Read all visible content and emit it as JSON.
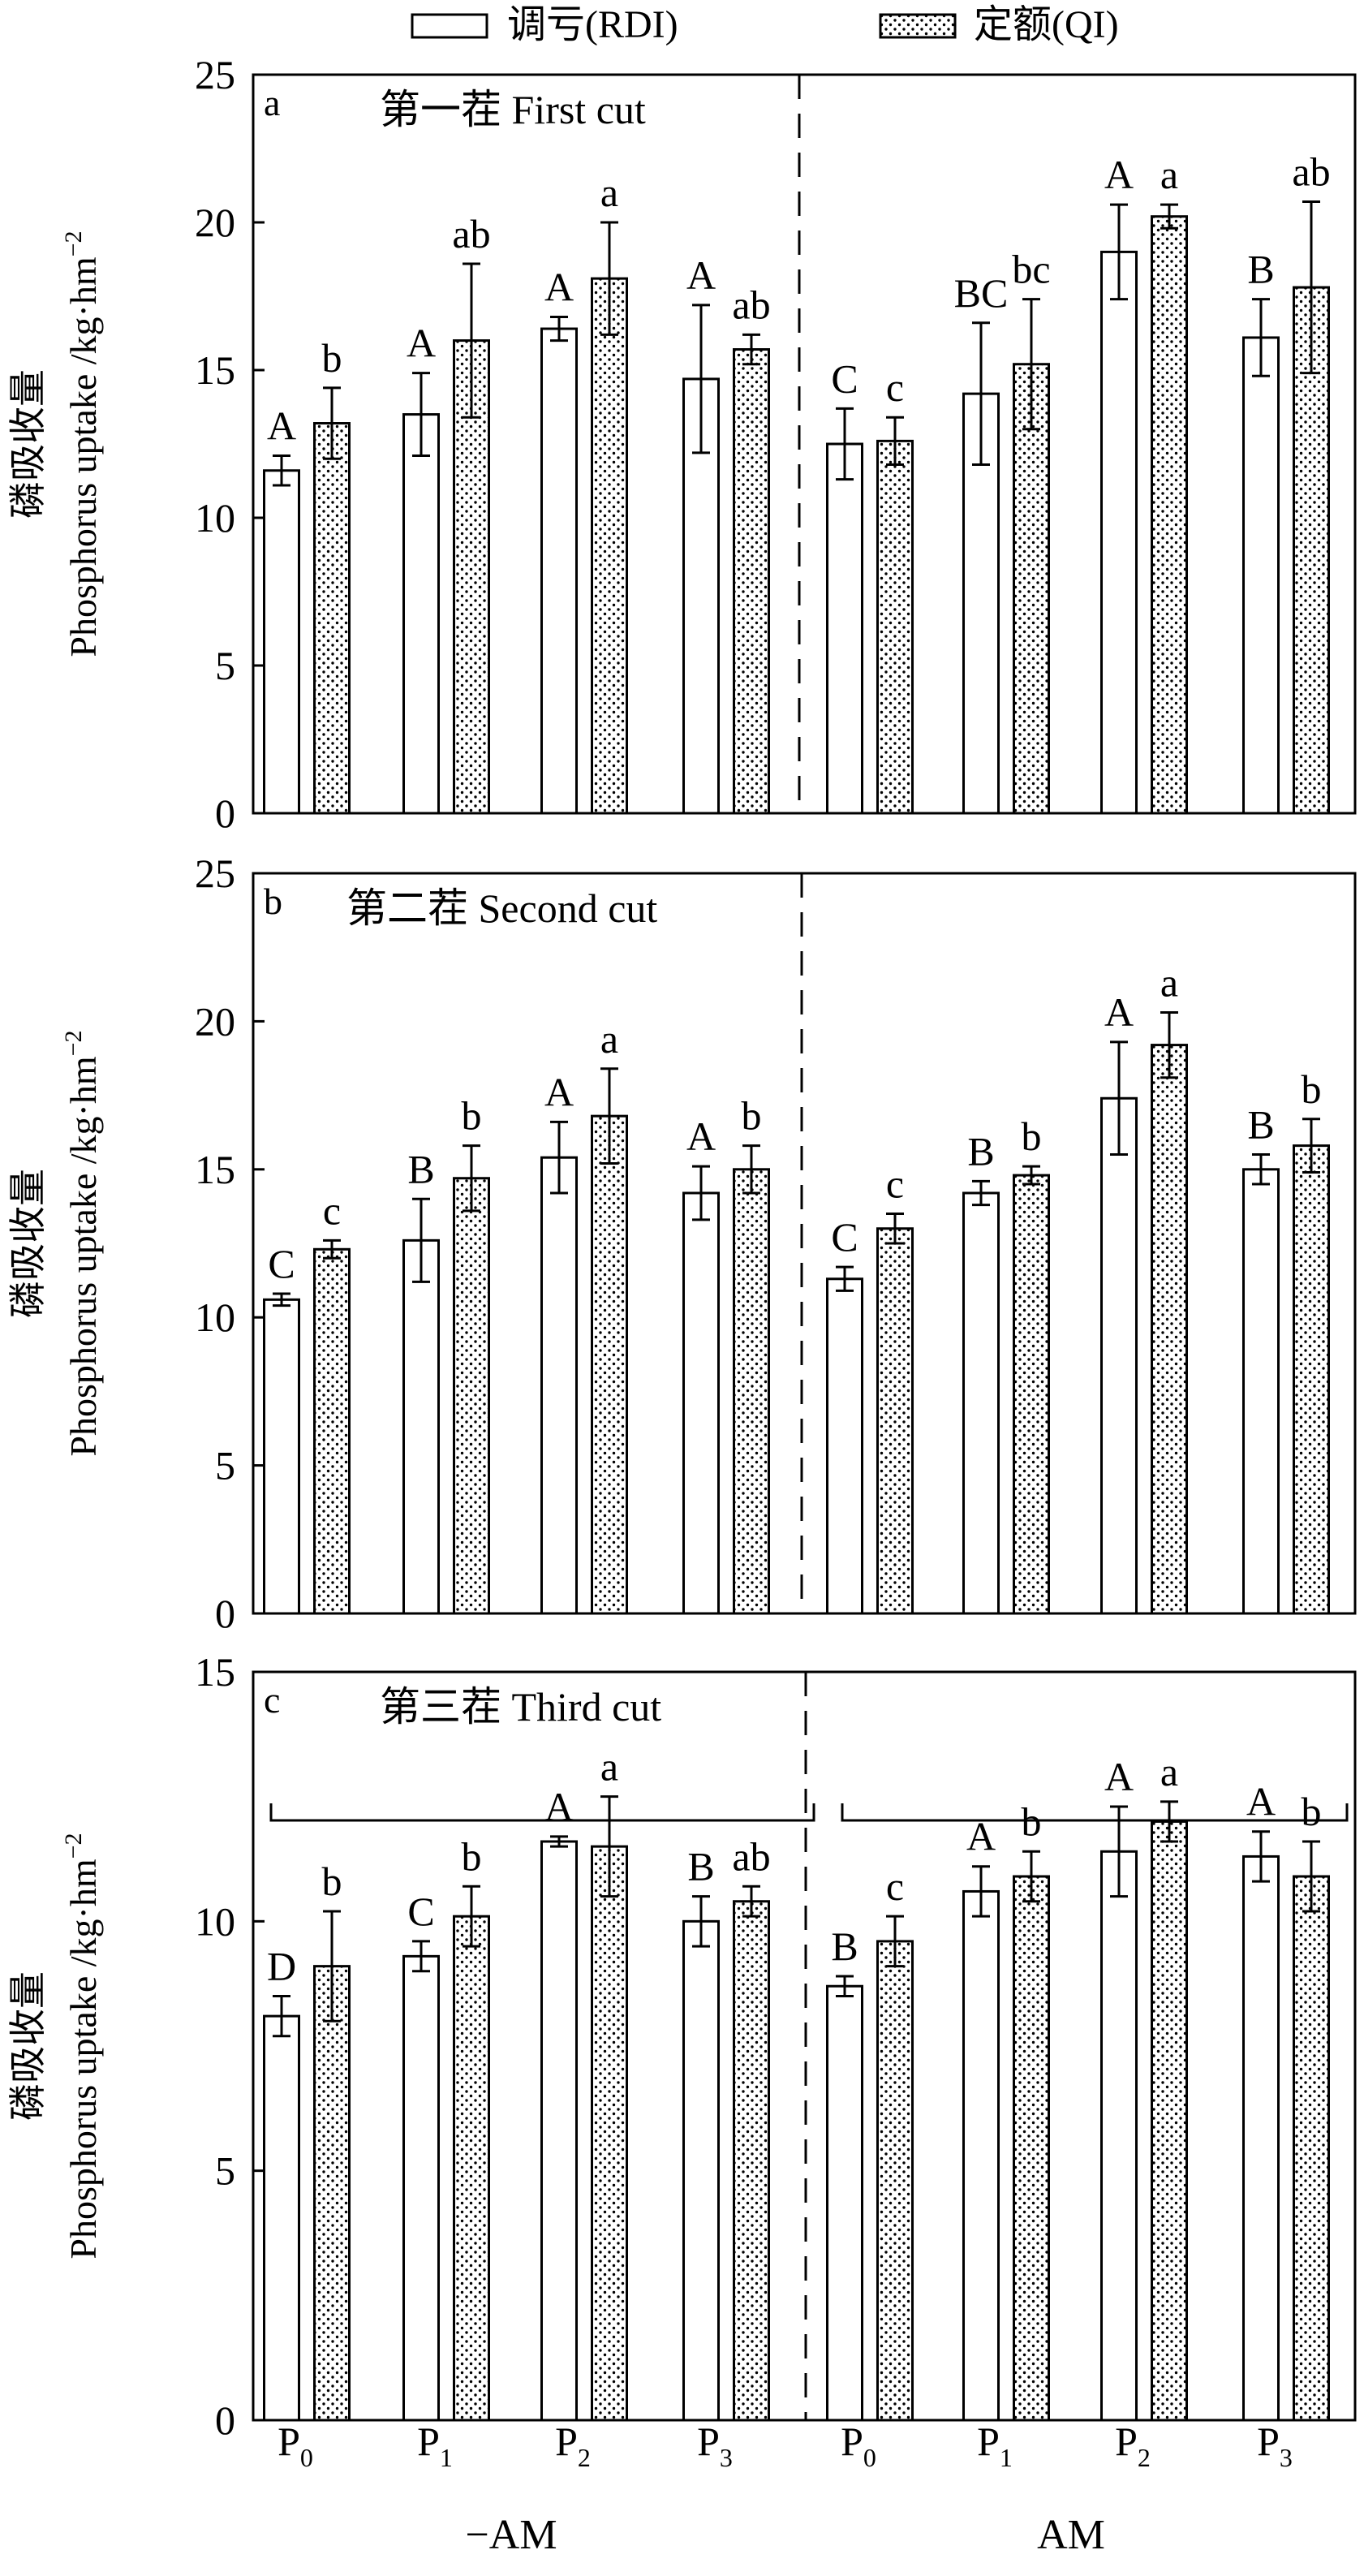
{
  "legend": {
    "rdi_label": "调亏(RDI)",
    "qi_label": "定额(QI)"
  },
  "ylabel_cn": "磷吸收量",
  "ylabel_en": "Phosphorus uptake /kg·hm",
  "ylabel_sup": "−2",
  "x_groups": [
    "P",
    "P",
    "P",
    "P",
    "P",
    "P",
    "P",
    "P"
  ],
  "x_subscripts": [
    "0",
    "1",
    "2",
    "3",
    "0",
    "1",
    "2",
    "3"
  ],
  "am_labels": [
    "−AM",
    "AM"
  ],
  "colors": {
    "rdi": "#ffffff",
    "qi": "dotted",
    "stroke": "#000000"
  },
  "chart_data": [
    {
      "type": "bar",
      "panel_letter": "a",
      "title": "第一茬 First cut",
      "ylim": [
        0,
        25
      ],
      "yticks": [
        "0",
        "5",
        "10",
        "15",
        "20",
        "25"
      ],
      "categories": [
        "P0",
        "P1",
        "P2",
        "P3",
        "P0",
        "P1",
        "P2",
        "P3"
      ],
      "series": [
        {
          "name": "调亏(RDI)",
          "values": [
            11.6,
            13.5,
            16.4,
            14.7,
            12.5,
            14.2,
            19.0,
            16.1
          ],
          "errors": [
            0.5,
            1.4,
            0.4,
            2.5,
            1.2,
            2.4,
            1.6,
            1.3
          ],
          "letters": [
            "A",
            "A",
            "A",
            "A",
            "C",
            "BC",
            "A",
            "B"
          ]
        },
        {
          "name": "定额(QI)",
          "values": [
            13.2,
            16.0,
            18.1,
            15.7,
            12.6,
            15.2,
            20.2,
            17.8
          ],
          "errors": [
            1.2,
            2.6,
            1.9,
            0.5,
            0.8,
            2.2,
            0.4,
            2.9
          ],
          "letters": [
            "b",
            "ab",
            "a",
            "ab",
            "c",
            "bc",
            "a",
            "ab"
          ]
        }
      ]
    },
    {
      "type": "bar",
      "panel_letter": "b",
      "title": "第二茬 Second cut",
      "ylim": [
        0,
        25
      ],
      "yticks": [
        "0",
        "5",
        "10",
        "15",
        "20",
        "25"
      ],
      "categories": [
        "P0",
        "P1",
        "P2",
        "P3",
        "P0",
        "P1",
        "P2",
        "P3"
      ],
      "series": [
        {
          "name": "调亏(RDI)",
          "values": [
            10.6,
            12.6,
            15.4,
            14.2,
            11.3,
            14.2,
            17.4,
            15.0
          ],
          "errors": [
            0.2,
            1.4,
            1.2,
            0.9,
            0.4,
            0.4,
            1.9,
            0.5
          ],
          "letters": [
            "C",
            "B",
            "A",
            "A",
            "C",
            "B",
            "A",
            "B"
          ]
        },
        {
          "name": "定额(QI)",
          "values": [
            12.3,
            14.7,
            16.8,
            15.0,
            13.0,
            14.8,
            19.2,
            15.8
          ],
          "errors": [
            0.3,
            1.1,
            1.6,
            0.8,
            0.5,
            0.3,
            1.1,
            0.9
          ],
          "letters": [
            "c",
            "b",
            "a",
            "b",
            "c",
            "b",
            "a",
            "b"
          ]
        }
      ]
    },
    {
      "type": "bar",
      "panel_letter": "c",
      "title": "第三茬 Third cut",
      "ylim": [
        0,
        15
      ],
      "yticks": [
        "0",
        "5",
        "10",
        "15"
      ],
      "categories": [
        "P0",
        "P1",
        "P2",
        "P3",
        "P0",
        "P1",
        "P2",
        "P3"
      ],
      "series": [
        {
          "name": "调亏(RDI)",
          "values": [
            8.1,
            9.3,
            11.6,
            10.0,
            8.7,
            10.6,
            11.4,
            11.3
          ],
          "errors": [
            0.4,
            0.3,
            0.1,
            0.5,
            0.2,
            0.5,
            0.9,
            0.5
          ],
          "letters": [
            "D",
            "C",
            "A",
            "B",
            "B",
            "A",
            "A",
            "A"
          ]
        },
        {
          "name": "定额(QI)",
          "values": [
            9.1,
            10.1,
            11.5,
            10.4,
            9.6,
            10.9,
            12.0,
            10.9
          ],
          "errors": [
            1.1,
            0.6,
            1.0,
            0.3,
            0.5,
            0.5,
            0.4,
            0.7
          ],
          "letters": [
            "b",
            "b",
            "a",
            "ab",
            "c",
            "b",
            "a",
            "b"
          ]
        }
      ]
    }
  ]
}
